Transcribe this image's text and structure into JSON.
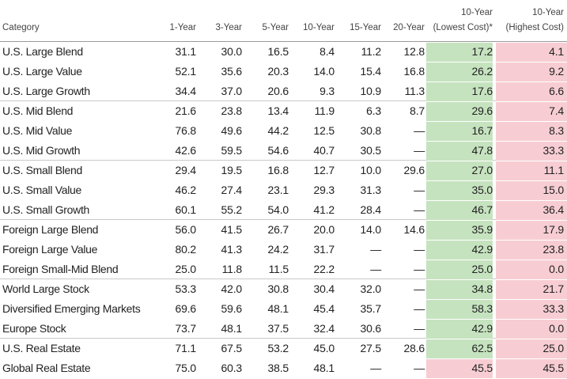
{
  "chart_data": {
    "type": "table",
    "columns": [
      "Category",
      "1-Year",
      "3-Year",
      "5-Year",
      "10-Year",
      "15-Year",
      "20-Year",
      "10-Year (Lowest Cost)*",
      "10-Year (Highest Cost)"
    ],
    "column_headers": [
      {
        "line1": "",
        "line2": "Category"
      },
      {
        "line1": "",
        "line2": "1-Year"
      },
      {
        "line1": "",
        "line2": "3-Year"
      },
      {
        "line1": "",
        "line2": "5-Year"
      },
      {
        "line1": "",
        "line2": "10-Year"
      },
      {
        "line1": "",
        "line2": "15-Year"
      },
      {
        "line1": "",
        "line2": "20-Year"
      },
      {
        "line1": "10-Year",
        "line2": "(Lowest Cost)*"
      },
      {
        "line1": "10-Year",
        "line2": "(Highest Cost)"
      }
    ],
    "groups": [
      3,
      3,
      3,
      3,
      3,
      2
    ],
    "rows": [
      {
        "category": "U.S. Large Blend",
        "values": [
          "31.1",
          "30.0",
          "16.5",
          "8.4",
          "11.2",
          "12.8",
          "17.2",
          "4.1"
        ]
      },
      {
        "category": "U.S. Large Value",
        "values": [
          "52.1",
          "35.6",
          "20.3",
          "14.0",
          "15.4",
          "16.8",
          "26.2",
          "9.2"
        ]
      },
      {
        "category": "U.S. Large Growth",
        "values": [
          "34.4",
          "37.0",
          "20.6",
          "9.3",
          "10.9",
          "11.3",
          "17.6",
          "6.6"
        ]
      },
      {
        "category": "U.S. Mid Blend",
        "values": [
          "21.6",
          "23.8",
          "13.4",
          "11.9",
          "6.3",
          "8.7",
          "29.6",
          "7.4"
        ]
      },
      {
        "category": "U.S. Mid Value",
        "values": [
          "76.8",
          "49.6",
          "44.2",
          "12.5",
          "30.8",
          "—",
          "16.7",
          "8.3"
        ]
      },
      {
        "category": "U.S. Mid Growth",
        "values": [
          "42.6",
          "59.5",
          "54.6",
          "40.7",
          "30.5",
          "—",
          "47.8",
          "33.3"
        ]
      },
      {
        "category": "U.S. Small Blend",
        "values": [
          "29.4",
          "19.5",
          "16.8",
          "12.7",
          "10.0",
          "29.6",
          "27.0",
          "11.1"
        ]
      },
      {
        "category": "U.S. Small Value",
        "values": [
          "46.2",
          "27.4",
          "23.1",
          "29.3",
          "31.3",
          "—",
          "35.0",
          "15.0"
        ]
      },
      {
        "category": "U.S. Small Growth",
        "values": [
          "60.1",
          "55.2",
          "54.0",
          "41.2",
          "28.4",
          "—",
          "46.7",
          "36.4"
        ]
      },
      {
        "category": "Foreign Large Blend",
        "values": [
          "56.0",
          "41.5",
          "26.7",
          "20.0",
          "14.0",
          "14.6",
          "35.9",
          "17.9"
        ]
      },
      {
        "category": "Foreign Large Value",
        "values": [
          "80.2",
          "41.3",
          "24.2",
          "31.7",
          "—",
          "—",
          "42.9",
          "23.8"
        ]
      },
      {
        "category": "Foreign Small-Mid Blend",
        "values": [
          "25.0",
          "11.8",
          "11.5",
          "22.2",
          "—",
          "—",
          "25.0",
          "0.0"
        ]
      },
      {
        "category": "World Large Stock",
        "values": [
          "53.3",
          "42.0",
          "30.8",
          "30.4",
          "32.0",
          "—",
          "34.8",
          "21.7"
        ]
      },
      {
        "category": "Diversified Emerging Markets",
        "values": [
          "69.6",
          "59.6",
          "48.1",
          "45.4",
          "35.7",
          "—",
          "58.3",
          "33.3"
        ]
      },
      {
        "category": "Europe Stock",
        "values": [
          "73.7",
          "48.1",
          "37.5",
          "32.4",
          "30.6",
          "—",
          "42.9",
          "0.0"
        ]
      },
      {
        "category": "U.S. Real Estate",
        "values": [
          "71.1",
          "67.5",
          "53.2",
          "45.0",
          "27.5",
          "28.6",
          "62.5",
          "25.0"
        ]
      },
      {
        "category": "Global Real Estate",
        "values": [
          "75.0",
          "60.3",
          "38.5",
          "48.1",
          "—",
          "—",
          "45.5",
          "45.5"
        ]
      }
    ],
    "highlight_colors": {
      "lowest_cost": "#c6e3bf",
      "highest_cost": "#f7cdd3"
    },
    "grid": false
  }
}
